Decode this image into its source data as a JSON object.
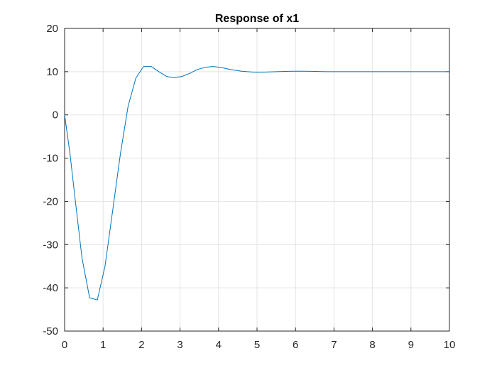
{
  "chart_data": {
    "type": "line",
    "title": "Response of x1",
    "xlabel": "",
    "ylabel": "",
    "xlim": [
      0,
      10
    ],
    "ylim": [
      -50,
      20
    ],
    "xticks": [
      0,
      1,
      2,
      3,
      4,
      5,
      6,
      7,
      8,
      9,
      10
    ],
    "yticks": [
      -50,
      -40,
      -30,
      -20,
      -10,
      0,
      10,
      20
    ],
    "grid": true,
    "line_color": "#0072BD",
    "series": [
      {
        "x": [
          0,
          0.14,
          0.28,
          0.45,
          0.65,
          0.85,
          1.05,
          1.25,
          1.45,
          1.65,
          1.85,
          2.05,
          2.25,
          2.45,
          2.65,
          2.85,
          3.05,
          3.25,
          3.45,
          3.65,
          3.85,
          4.05,
          4.3,
          4.6,
          4.9,
          5.2,
          5.5,
          5.9,
          6.3,
          6.8,
          7.3,
          7.8,
          8.5,
          9.2,
          10
        ],
        "y": [
          0,
          -9,
          -20,
          -33,
          -42.3,
          -42.8,
          -35,
          -22,
          -9,
          2,
          8.5,
          11.2,
          11.2,
          10,
          8.9,
          8.6,
          8.9,
          9.6,
          10.5,
          11,
          11.2,
          11,
          10.5,
          10.1,
          9.9,
          9.9,
          10.0,
          10.1,
          10.1,
          10.0,
          10.0,
          10.0,
          10.0,
          10.0,
          10.0
        ]
      }
    ]
  }
}
